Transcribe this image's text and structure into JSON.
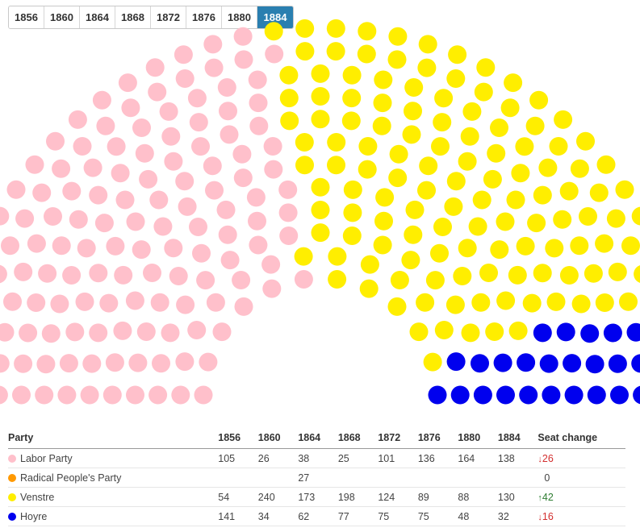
{
  "years": [
    "1856",
    "1860",
    "1864",
    "1868",
    "1872",
    "1876",
    "1880",
    "1884"
  ],
  "selected_year": "1884",
  "colors": {
    "tab_active": "#2a7fb0",
    "up": "#2e7d32",
    "down": "#d32f2f"
  },
  "table": {
    "headers": [
      "Party",
      "1856",
      "1860",
      "1864",
      "1868",
      "1872",
      "1876",
      "1880",
      "1884",
      "Seat change"
    ],
    "rows": [
      {
        "party": "Labor Party",
        "color": "#ffc0cb",
        "values": [
          "105",
          "26",
          "38",
          "25",
          "101",
          "136",
          "164",
          "138"
        ],
        "change_arrow": "↓",
        "change_value": "26",
        "direction": "down"
      },
      {
        "party": "Radical People's Party",
        "color": "#ff9900",
        "values": [
          "",
          "",
          "27",
          "",
          "",
          "",
          "",
          ""
        ],
        "change_arrow": "",
        "change_value": "0",
        "direction": "none"
      },
      {
        "party": "Venstre",
        "color": "#ffee00",
        "values": [
          "54",
          "240",
          "173",
          "198",
          "124",
          "89",
          "88",
          "130"
        ],
        "change_arrow": "↑",
        "change_value": "42",
        "direction": "up"
      },
      {
        "party": "Hoyre",
        "color": "#0000ee",
        "values": [
          "141",
          "34",
          "62",
          "77",
          "75",
          "75",
          "48",
          "32"
        ],
        "change_arrow": "↓",
        "change_value": "16",
        "direction": "down"
      }
    ]
  },
  "chart_data": {
    "type": "parliament",
    "year": "1884",
    "series": [
      {
        "name": "Labor Party",
        "seats": 138,
        "color": "#ffc0cb"
      },
      {
        "name": "Venstre",
        "seats": 130,
        "color": "#ffee00"
      },
      {
        "name": "Hoyre",
        "seats": 32,
        "color": "#0000ee"
      }
    ]
  }
}
